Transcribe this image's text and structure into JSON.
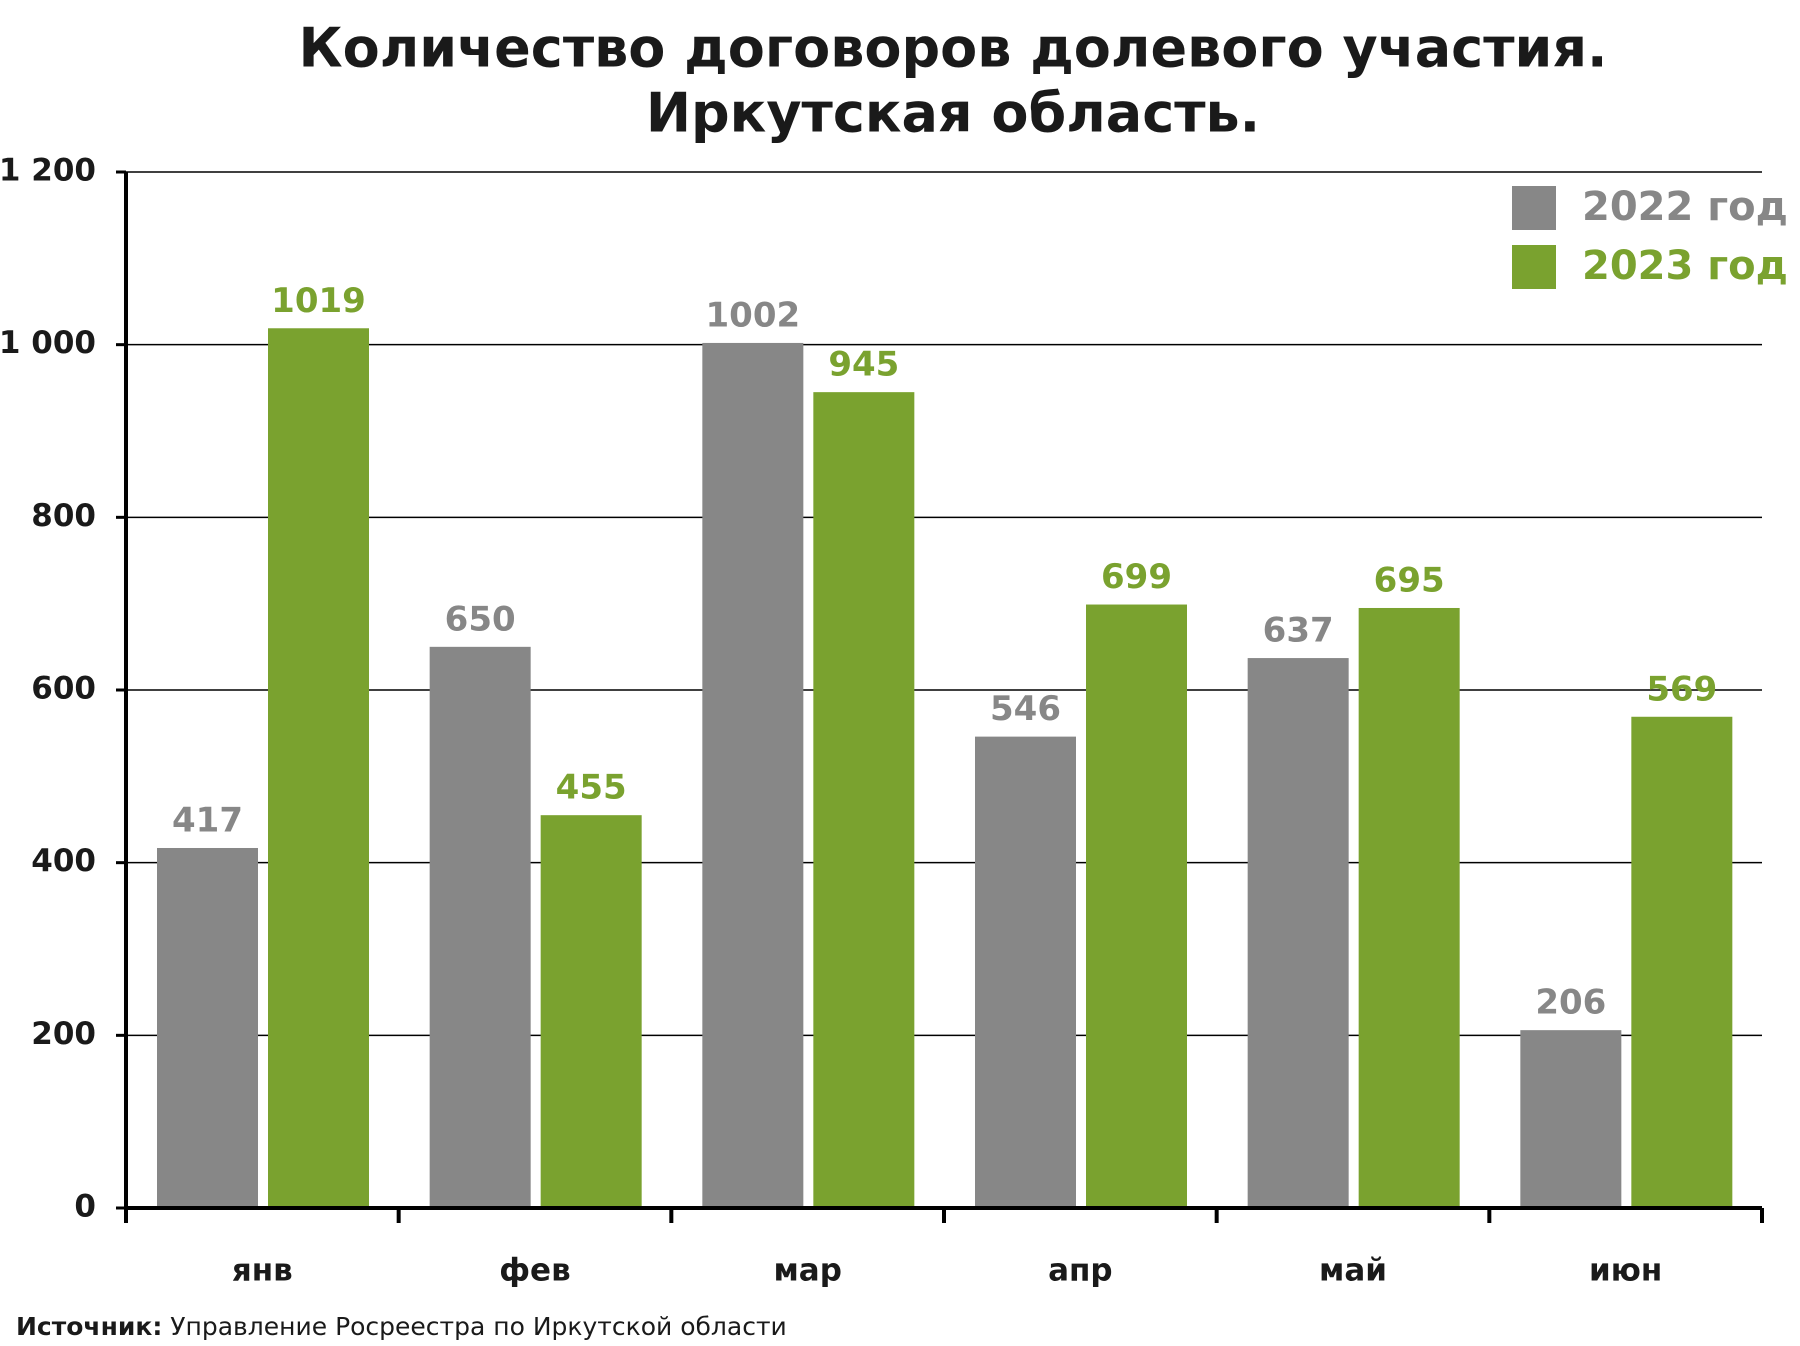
{
  "chart_data": {
    "type": "bar",
    "title": [
      "Количество договоров долевого участия.",
      "Иркутская область."
    ],
    "categories": [
      "янв",
      "фев",
      "мар",
      "апр",
      "май",
      "июн"
    ],
    "series": [
      {
        "name": "2022 год",
        "color": "#878787",
        "values": [
          417,
          650,
          1002,
          546,
          637,
          206
        ]
      },
      {
        "name": "2023 год",
        "color": "#7aa22f",
        "values": [
          1019,
          455,
          945,
          699,
          695,
          569
        ]
      }
    ],
    "ylim": [
      0,
      1200
    ],
    "yticks": [
      0,
      200,
      400,
      600,
      800,
      {
        "value": 1000,
        "label": "1 000"
      },
      {
        "value": 1200,
        "label": "1 200"
      }
    ],
    "grid": true,
    "legend": "top-right",
    "source_label": "Источник:",
    "source": "Управление Росреестра по Иркутской области"
  }
}
